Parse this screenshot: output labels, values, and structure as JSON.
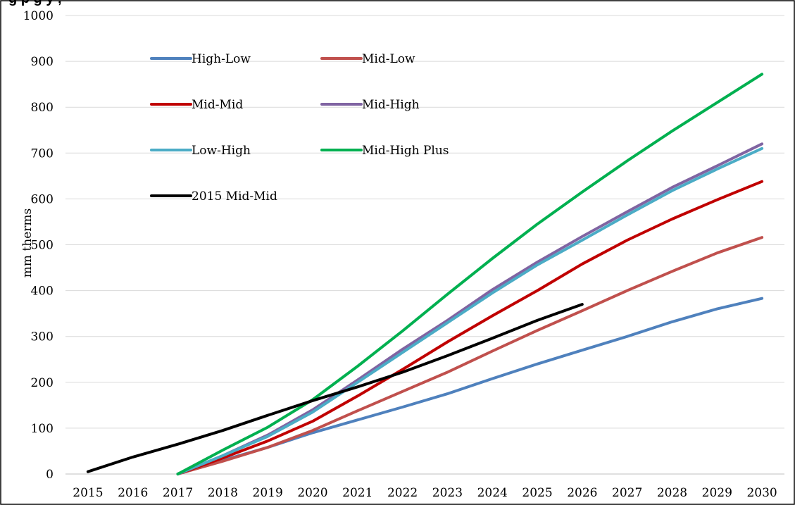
{
  "chart_data": {
    "type": "line",
    "title": "g                                        p             g y         ,",
    "xlabel": "",
    "ylabel": "mm therms",
    "x": [
      "2015",
      "2016",
      "2017",
      "2018",
      "2019",
      "2020",
      "2021",
      "2022",
      "2023",
      "2024",
      "2025",
      "2026",
      "2027",
      "2028",
      "2029",
      "2030"
    ],
    "ylim": [
      0,
      1000
    ],
    "yticks": [
      0,
      100,
      200,
      300,
      400,
      500,
      600,
      700,
      800,
      900,
      1000
    ],
    "grid": true,
    "legend_position": "top-left inside",
    "series": [
      {
        "name": "High-Low",
        "color": "#4f81bd",
        "values": [
          null,
          null,
          0,
          30,
          58,
          90,
          118,
          146,
          175,
          208,
          240,
          270,
          300,
          332,
          360,
          383
        ]
      },
      {
        "name": "Mid-Low",
        "color": "#c0504d",
        "values": [
          null,
          null,
          0,
          28,
          58,
          95,
          138,
          180,
          222,
          268,
          313,
          356,
          400,
          442,
          482,
          516
        ]
      },
      {
        "name": "Mid-Mid",
        "color": "#c00000",
        "values": [
          null,
          null,
          0,
          35,
          72,
          115,
          170,
          228,
          288,
          345,
          400,
          458,
          510,
          556,
          598,
          638
        ]
      },
      {
        "name": "Mid-High",
        "color": "#8064a2",
        "values": [
          null,
          null,
          0,
          40,
          85,
          140,
          205,
          272,
          335,
          402,
          462,
          518,
          572,
          625,
          672,
          720
        ]
      },
      {
        "name": "Low-High",
        "color": "#4bacc6",
        "values": [
          null,
          null,
          0,
          40,
          82,
          135,
          200,
          265,
          330,
          395,
          456,
          510,
          565,
          618,
          665,
          710
        ]
      },
      {
        "name": "Mid-High Plus",
        "color": "#00b050",
        "values": [
          null,
          null,
          0,
          52,
          102,
          162,
          235,
          312,
          392,
          470,
          545,
          615,
          683,
          748,
          810,
          872
        ]
      },
      {
        "name": "2015 Mid-Mid",
        "color": "#000000",
        "values": [
          5,
          37,
          65,
          95,
          128,
          160,
          190,
          222,
          258,
          296,
          335,
          370,
          null,
          null,
          null,
          null
        ]
      }
    ]
  }
}
